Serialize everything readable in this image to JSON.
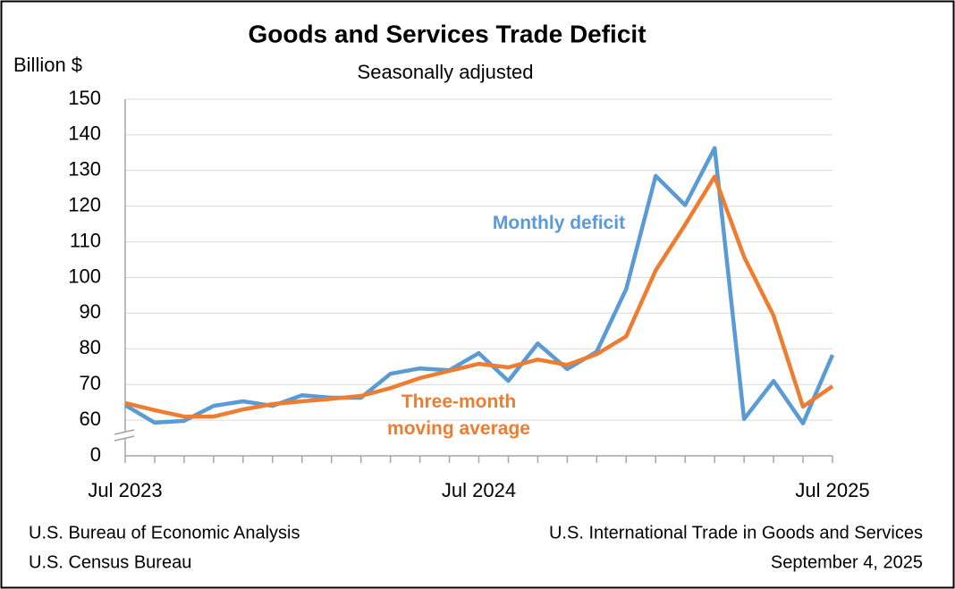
{
  "chart_data": {
    "type": "line",
    "title": "Goods and Services Trade Deficit",
    "subtitle": "Seasonally adjusted",
    "y_label": "Billion $",
    "categories": [
      "Jul 2023",
      null,
      null,
      null,
      null,
      null,
      null,
      null,
      null,
      null,
      null,
      null,
      "Jul 2024",
      null,
      null,
      null,
      null,
      null,
      null,
      null,
      null,
      null,
      null,
      null,
      "Jul 2025"
    ],
    "series": [
      {
        "name": "Monthly deficit",
        "color": "#5b9bd5",
        "values": [
          64.2,
          59.3,
          59.8,
          64.0,
          65.3,
          64.0,
          67.0,
          66.3,
          66.3,
          73.0,
          74.5,
          74.0,
          78.8,
          71.0,
          81.5,
          74.3,
          79.2,
          96.8,
          128.5,
          120.3,
          136.3,
          60.3,
          71.0,
          59.1,
          78.3
        ]
      },
      {
        "name": "Three-month moving average",
        "color": "#ed7d31",
        "values": [
          64.8,
          62.8,
          61.0,
          61.0,
          63.0,
          64.5,
          65.3,
          66.0,
          66.8,
          69.0,
          71.8,
          73.8,
          75.8,
          74.8,
          77.0,
          75.5,
          78.5,
          83.5,
          102.0,
          114.8,
          128.3,
          105.8,
          89.3,
          63.8,
          69.5
        ]
      }
    ],
    "ylim": [
      0,
      150
    ],
    "axis_break": [
      0,
      50
    ],
    "yticks": [
      0,
      60,
      70,
      80,
      90,
      100,
      110,
      120,
      130,
      140,
      150
    ],
    "grid": true,
    "sources": [
      "U.S. Bureau of Economic Analysis",
      "U.S. Census Bureau"
    ],
    "report": [
      "U.S. International Trade in Goods and Services",
      "September 4, 2025"
    ]
  }
}
